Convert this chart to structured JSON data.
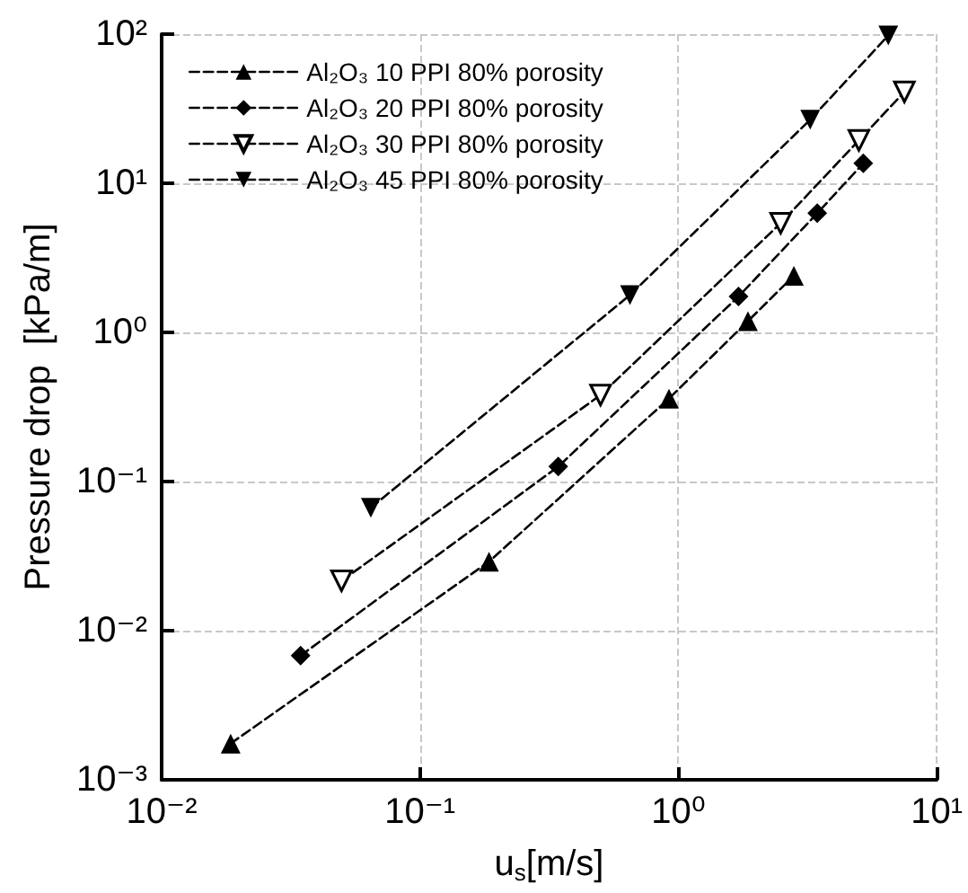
{
  "chart_data": {
    "type": "line",
    "xlabel": "u$_{s}$[m/s]",
    "ylabel": "Pressure drop  [kPa/m]",
    "log": "xy",
    "xlim": [
      0.01,
      10
    ],
    "xticks": [
      {
        "value": 0.01,
        "label": "10⁻²"
      },
      {
        "value": 0.1,
        "label": "10⁻¹"
      },
      {
        "value": 1,
        "label": "10⁰"
      },
      {
        "value": 10,
        "label": "10¹"
      }
    ],
    "ylim": [
      0.001,
      100
    ],
    "yticks": [
      {
        "value": 0.001,
        "label": "10⁻³"
      },
      {
        "value": 0.01,
        "label": "10⁻²"
      },
      {
        "value": 0.1,
        "label": "10⁻¹"
      },
      {
        "value": 1,
        "label": "10⁰"
      },
      {
        "value": 10,
        "label": "10¹"
      },
      {
        "value": 100,
        "label": "10²"
      }
    ],
    "grid": true,
    "legend": "top left",
    "line_style": "dashed",
    "series": [
      {
        "name": "Al₂O₃ 10 PPI 80% porosity",
        "color": "#000000",
        "marker": "triangle",
        "x": [
          0.0185,
          0.185,
          0.92,
          1.86,
          2.8
        ],
        "values": [
          0.00175,
          0.029,
          0.36,
          1.19,
          2.4
        ]
      },
      {
        "name": "Al₂O₃ 20 PPI 80% porosity",
        "color": "#000000",
        "marker": "diamond",
        "x": [
          0.0345,
          0.343,
          1.71,
          3.45,
          5.2
        ],
        "values": [
          0.0068,
          0.126,
          1.74,
          6.3,
          13.6
        ]
      },
      {
        "name": "Al₂O₃ 30 PPI 80% porosity",
        "color": "#000000",
        "marker": "triangle-down-open",
        "x": [
          0.0497,
          0.5,
          2.49,
          5.0,
          7.5
        ],
        "values": [
          0.0216,
          0.38,
          5.4,
          19.4,
          41
        ]
      },
      {
        "name": "Al₂O₃ 45 PPI 80% porosity",
        "color": "#000000",
        "marker": "triangle-down",
        "x": [
          0.0645,
          0.65,
          3.24,
          6.5
        ],
        "values": [
          0.0666,
          1.78,
          26.7,
          98
        ]
      }
    ]
  }
}
